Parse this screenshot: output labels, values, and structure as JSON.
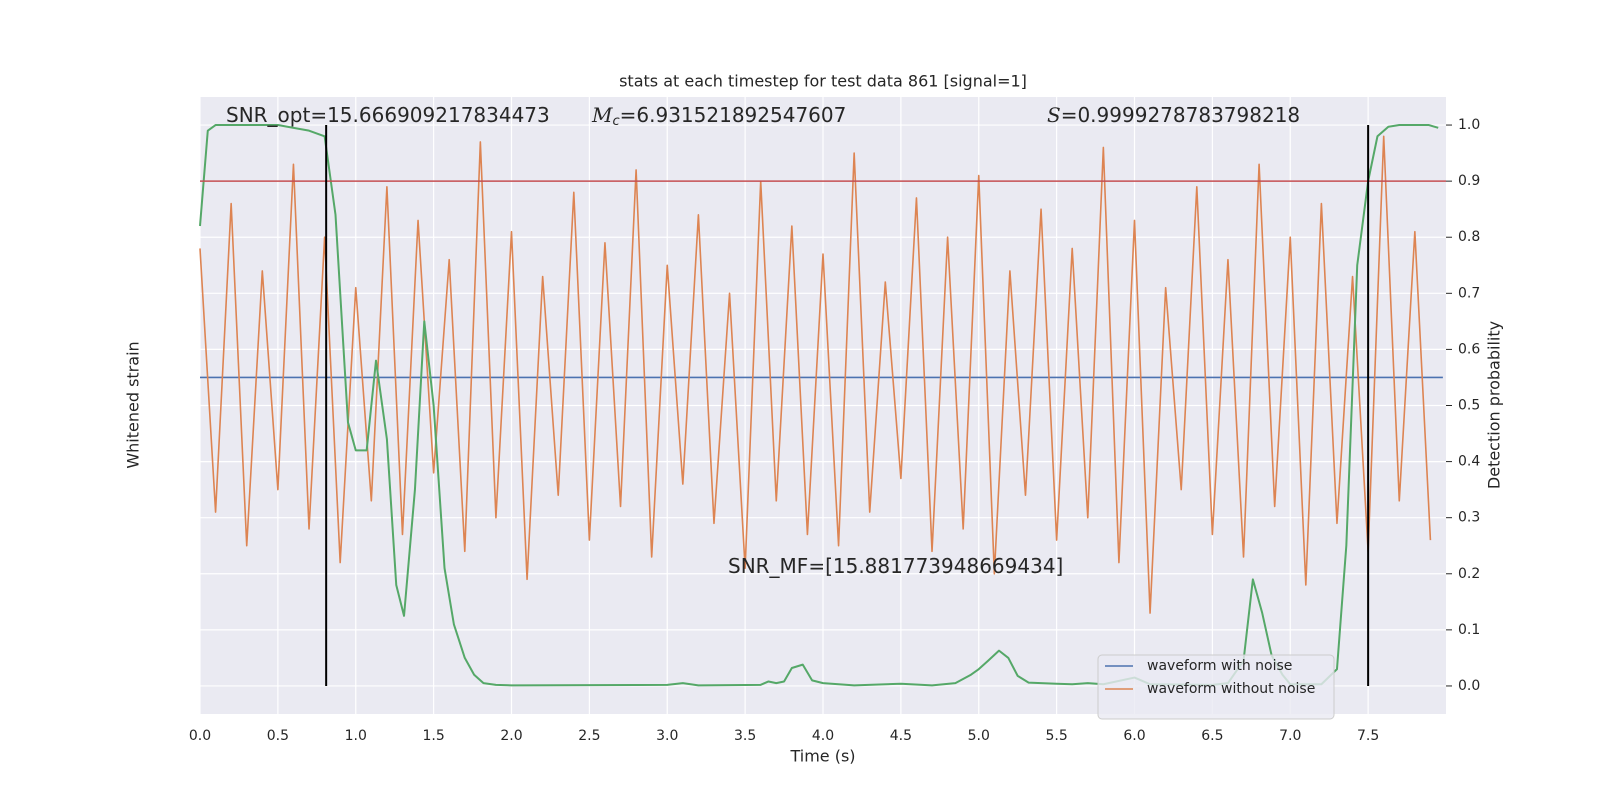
{
  "chart_data": {
    "type": "line",
    "title": "stats at each timestep for test data 861 [signal=1]",
    "xlabel": "Time (s)",
    "ylabel": "Whitened strain",
    "y2label": "Detection probability",
    "xlim": [
      0,
      8.0
    ],
    "ylim": [
      -0.05,
      1.05
    ],
    "xticks": [
      {
        "value": 0,
        "label": "0.0"
      },
      {
        "value": 0.5,
        "label": "0.5"
      },
      {
        "value": 1,
        "label": "1.0"
      },
      {
        "value": 1.5,
        "label": "1.5"
      },
      {
        "value": 2,
        "label": "2.0"
      },
      {
        "value": 2.5,
        "label": "2.5"
      },
      {
        "value": 3,
        "label": "3.0"
      },
      {
        "value": 3.5,
        "label": "3.5"
      },
      {
        "value": 4,
        "label": "4.0"
      },
      {
        "value": 4.5,
        "label": "4.5"
      },
      {
        "value": 5,
        "label": "5.0"
      },
      {
        "value": 5.5,
        "label": "5.5"
      },
      {
        "value": 6,
        "label": "6.0"
      },
      {
        "value": 6.5,
        "label": "6.5"
      },
      {
        "value": 7,
        "label": "7.0"
      },
      {
        "value": 7.5,
        "label": "7.5"
      }
    ],
    "y2ticks": [
      {
        "value": 0,
        "label": "0.0"
      },
      {
        "value": 0.1,
        "label": "0.1"
      },
      {
        "value": 0.2,
        "label": "0.2"
      },
      {
        "value": 0.3,
        "label": "0.3"
      },
      {
        "value": 0.4,
        "label": "0.4"
      },
      {
        "value": 0.5,
        "label": "0.5"
      },
      {
        "value": 0.6,
        "label": "0.6"
      },
      {
        "value": 0.7,
        "label": "0.7"
      },
      {
        "value": 0.8,
        "label": "0.8"
      },
      {
        "value": 0.9,
        "label": "0.9"
      },
      {
        "value": 1,
        "label": "1.0"
      }
    ],
    "grid": true,
    "legend": "lower right",
    "x": [
      0.0,
      0.1,
      0.2,
      0.3,
      0.4,
      0.5,
      0.6,
      0.7,
      0.8,
      0.9,
      1.0,
      1.1,
      1.2,
      1.3,
      1.4,
      1.5,
      1.6,
      1.7,
      1.8,
      1.9,
      2.0,
      2.1,
      2.2,
      2.3,
      2.4,
      2.5,
      2.6,
      2.7,
      2.8,
      2.9,
      3.0,
      3.1,
      3.2,
      3.3,
      3.4,
      3.5,
      3.6,
      3.7,
      3.8,
      3.9,
      4.0,
      4.1,
      4.2,
      4.3,
      4.4,
      4.5,
      4.6,
      4.7,
      4.8,
      4.9,
      5.0,
      5.1,
      5.2,
      5.3,
      5.4,
      5.5,
      5.6,
      5.7,
      5.8,
      5.9,
      6.0,
      6.1,
      6.2,
      6.3,
      6.4,
      6.5,
      6.6,
      6.7,
      6.8,
      6.9,
      7.0,
      7.1,
      7.2,
      7.3,
      7.4,
      7.5,
      7.6,
      7.7,
      7.8,
      7.9
    ],
    "series": [
      {
        "name": "waveform with noise",
        "color": "#4c72b0",
        "x": [
          0,
          7.98
        ],
        "values": [
          0.55,
          0.55
        ]
      },
      {
        "name": "waveform without noise",
        "color": "#dd8452",
        "values": [
          0.78,
          0.31,
          0.86,
          0.25,
          0.74,
          0.35,
          0.93,
          0.28,
          0.8,
          0.22,
          0.71,
          0.33,
          0.89,
          0.27,
          0.83,
          0.38,
          0.76,
          0.24,
          0.97,
          0.3,
          0.81,
          0.19,
          0.73,
          0.34,
          0.88,
          0.26,
          0.79,
          0.32,
          0.92,
          0.23,
          0.75,
          0.36,
          0.84,
          0.29,
          0.7,
          0.21,
          0.9,
          0.33,
          0.82,
          0.27,
          0.77,
          0.25,
          0.95,
          0.31,
          0.72,
          0.37,
          0.87,
          0.24,
          0.8,
          0.28,
          0.91,
          0.2,
          0.74,
          0.34,
          0.85,
          0.26,
          0.78,
          0.3,
          0.96,
          0.22,
          0.83,
          0.13,
          0.71,
          0.35,
          0.89,
          0.27,
          0.76,
          0.23,
          0.93,
          0.32,
          0.8,
          0.18,
          0.86,
          0.29,
          0.73,
          0.24,
          0.98,
          0.33,
          0.81,
          0.26
        ]
      },
      {
        "color": "#55a868",
        "axis": "y2",
        "x": [
          0.0,
          0.05,
          0.1,
          0.5,
          0.7,
          0.8,
          0.87,
          0.95,
          1.0,
          1.07,
          1.13,
          1.2,
          1.26,
          1.31,
          1.38,
          1.44,
          1.5,
          1.57,
          1.63,
          1.7,
          1.76,
          1.82,
          1.9,
          2.0,
          3.0,
          3.1,
          3.2,
          3.6,
          3.65,
          3.7,
          3.75,
          3.8,
          3.87,
          3.93,
          4.0,
          4.2,
          4.5,
          4.7,
          4.85,
          4.95,
          5.0,
          5.06,
          5.13,
          5.19,
          5.25,
          5.32,
          5.5,
          5.6,
          5.7,
          5.8,
          6.0,
          6.1,
          6.5,
          6.6,
          6.7,
          6.76,
          6.82,
          6.88,
          6.95,
          7.0,
          7.2,
          7.3,
          7.36,
          7.43,
          7.5,
          7.56,
          7.63,
          7.7,
          7.89,
          7.95
        ],
        "values": [
          0.82,
          0.99,
          1.0,
          1.0,
          0.99,
          0.98,
          0.84,
          0.47,
          0.42,
          0.42,
          0.58,
          0.44,
          0.18,
          0.125,
          0.35,
          0.65,
          0.5,
          0.21,
          0.11,
          0.05,
          0.02,
          0.005,
          0.002,
          0.001,
          0.002,
          0.005,
          0.001,
          0.002,
          0.008,
          0.005,
          0.008,
          0.032,
          0.038,
          0.01,
          0.005,
          0.001,
          0.004,
          0.001,
          0.005,
          0.02,
          0.03,
          0.045,
          0.063,
          0.05,
          0.018,
          0.006,
          0.004,
          0.003,
          0.005,
          0.003,
          0.015,
          0.003,
          0.002,
          0.005,
          0.045,
          0.19,
          0.13,
          0.055,
          0.02,
          0.003,
          0.003,
          0.03,
          0.25,
          0.75,
          0.9,
          0.98,
          0.997,
          1.0,
          1.0,
          0.995
        ]
      }
    ],
    "hline": {
      "value": 0.9,
      "color": "#c44e52"
    },
    "vlines": {
      "x": [
        0.81,
        7.5
      ],
      "range": [
        0,
        1
      ],
      "color": "#000000"
    },
    "annotations": [
      {
        "text": "SNR_opt=15.666909217834473"
      },
      {
        "symbol": "M",
        "subscript": "c",
        "text": "=6.931521892547607"
      },
      {
        "symbol": "S",
        "text": "=0.9999278783798218"
      },
      {
        "text": "SNR_MF=[15.881773948669434]"
      }
    ]
  }
}
